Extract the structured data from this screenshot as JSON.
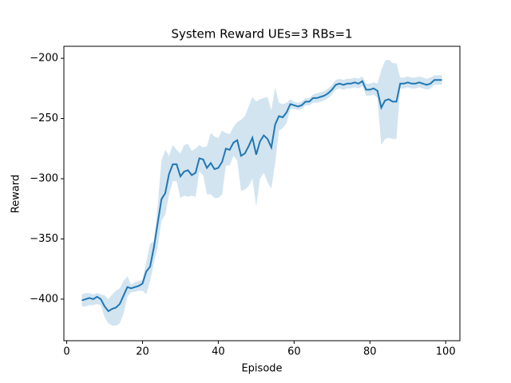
{
  "chart_data": {
    "type": "line",
    "title": "System Reward UEs=3 RBs=1",
    "x_label": "Episode",
    "y_label": "Reward",
    "x": [
      4,
      5,
      6,
      7,
      8,
      9,
      10,
      11,
      12,
      13,
      14,
      15,
      16,
      17,
      18,
      19,
      20,
      21,
      22,
      23,
      24,
      25,
      26,
      27,
      28,
      29,
      30,
      31,
      32,
      33,
      34,
      35,
      36,
      37,
      38,
      39,
      40,
      41,
      42,
      43,
      44,
      45,
      46,
      47,
      48,
      49,
      50,
      51,
      52,
      53,
      54,
      55,
      56,
      57,
      58,
      59,
      60,
      61,
      62,
      63,
      64,
      65,
      66,
      67,
      68,
      69,
      70,
      71,
      72,
      73,
      74,
      75,
      76,
      77,
      78,
      79,
      80,
      81,
      82,
      83,
      84,
      85,
      86,
      87,
      88,
      89,
      90,
      91,
      92,
      93,
      94,
      95,
      96,
      97,
      98,
      99
    ],
    "series": [
      {
        "color": "#1f77b4",
        "band_color": "#1f77b4",
        "values": [
          -401,
          -400,
          -399,
          -400,
          -398,
          -400,
          -406,
          -410,
          -408,
          -407,
          -404,
          -397,
          -390,
          -391,
          -390,
          -389,
          -387,
          -377,
          -373,
          -357,
          -337,
          -317,
          -312,
          -296,
          -288,
          -288,
          -298,
          -294,
          -293,
          -297,
          -295,
          -283,
          -284,
          -291,
          -287,
          -292,
          -291,
          -286,
          -275,
          -276,
          -270,
          -268,
          -281,
          -279,
          -273,
          -266,
          -280,
          -269,
          -264,
          -267,
          -274,
          -255,
          -248,
          -249,
          -245,
          -238,
          -239,
          -240,
          -239,
          -236,
          -236,
          -233,
          -233,
          -232,
          -231,
          -229,
          -226,
          -222,
          -221,
          -222,
          -221,
          -221,
          -220,
          -221,
          -219,
          -226,
          -226,
          -225,
          -227,
          -241,
          -235,
          -234,
          -236,
          -236,
          -221,
          -221,
          -220,
          -221,
          -221,
          -220,
          -221,
          -222,
          -221,
          -218,
          -218,
          -218
        ],
        "lower": [
          -406,
          -406,
          -405,
          -405,
          -404,
          -405,
          -415,
          -420,
          -422,
          -422,
          -420,
          -412,
          -398,
          -394,
          -394,
          -393,
          -393,
          -396,
          -385,
          -370,
          -357,
          -335,
          -330,
          -313,
          -302,
          -302,
          -316,
          -314,
          -315,
          -314,
          -315,
          -294,
          -297,
          -313,
          -313,
          -316,
          -316,
          -313,
          -289,
          -289,
          -281,
          -285,
          -310,
          -309,
          -306,
          -300,
          -323,
          -300,
          -295,
          -303,
          -308,
          -287,
          -260,
          -258,
          -254,
          -242,
          -242,
          -243,
          -242,
          -239,
          -239,
          -237,
          -237,
          -236,
          -235,
          -233,
          -230,
          -226,
          -225,
          -226,
          -225,
          -225,
          -224,
          -225,
          -223,
          -231,
          -231,
          -230,
          -233,
          -272,
          -267,
          -266,
          -267,
          -267,
          -225,
          -225,
          -224,
          -225,
          -225,
          -224,
          -225,
          -226,
          -225,
          -222,
          -222,
          -222
        ],
        "upper": [
          -396,
          -395,
          -395,
          -396,
          -395,
          -396,
          -397,
          -400,
          -396,
          -393,
          -391,
          -385,
          -381,
          -388,
          -386,
          -385,
          -384,
          -369,
          -354,
          -352,
          -322,
          -285,
          -276,
          -281,
          -272,
          -276,
          -279,
          -272,
          -271,
          -277,
          -275,
          -272,
          -274,
          -273,
          -262,
          -265,
          -266,
          -260,
          -262,
          -263,
          -257,
          -253,
          -251,
          -248,
          -240,
          -232,
          -236,
          -234,
          -233,
          -232,
          -243,
          -224,
          -237,
          -238,
          -237,
          -234,
          -236,
          -237,
          -236,
          -233,
          -233,
          -230,
          -229,
          -228,
          -227,
          -225,
          -222,
          -218,
          -217,
          -218,
          -217,
          -217,
          -216,
          -217,
          -215,
          -221,
          -221,
          -220,
          -221,
          -210,
          -202,
          -201,
          -204,
          -204,
          -216,
          -216,
          -215,
          -216,
          -216,
          -215,
          -216,
          -217,
          -216,
          -214,
          -214,
          -214
        ]
      }
    ],
    "xlim": [
      -0.75,
      103.75
    ],
    "ylim": [
      -434.5,
      -190
    ],
    "xticks": [
      0,
      20,
      40,
      60,
      80,
      100
    ],
    "yticks": [
      {
        "value": -400,
        "label": "−400"
      },
      {
        "value": -350,
        "label": "−350"
      },
      {
        "value": -300,
        "label": "−300"
      },
      {
        "value": -250,
        "label": "−250"
      },
      {
        "value": -200,
        "label": "−200"
      }
    ]
  }
}
